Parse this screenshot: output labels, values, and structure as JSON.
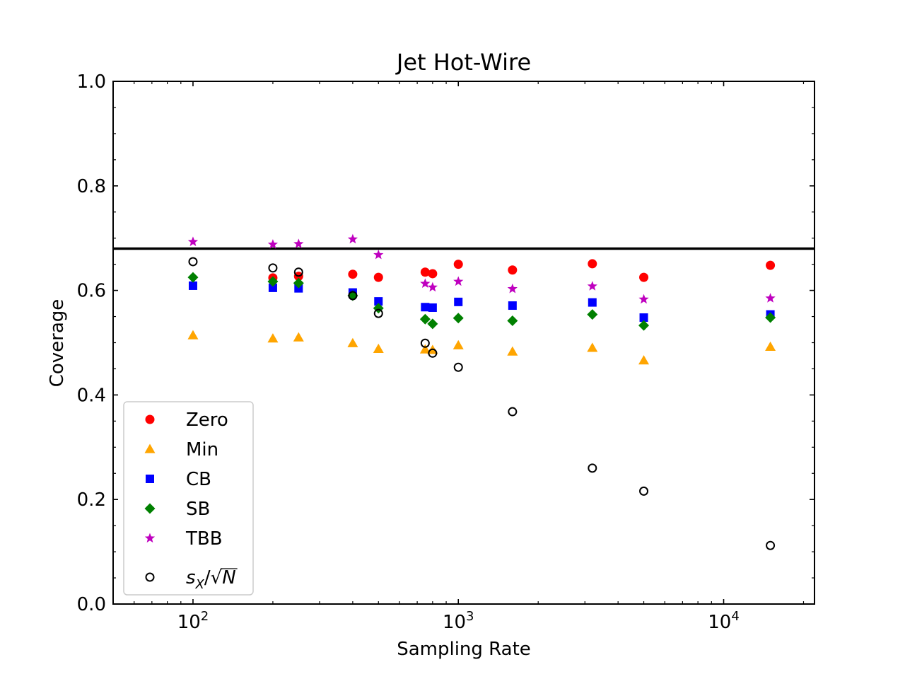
{
  "chart_data": {
    "type": "scatter",
    "title": "Jet Hot-Wire",
    "xlabel": "Sampling Rate",
    "ylabel": "Coverage",
    "xscale": "log",
    "xlim": [
      50,
      22000
    ],
    "ylim": [
      0.0,
      1.0
    ],
    "x_ticks": [
      {
        "value": 100,
        "base": "10",
        "exp": "2"
      },
      {
        "value": 1000,
        "base": "10",
        "exp": "3"
      },
      {
        "value": 10000,
        "base": "10",
        "exp": "4"
      }
    ],
    "y_ticks": [
      "0.0",
      "0.2",
      "0.4",
      "0.6",
      "0.8",
      "1.0"
    ],
    "reference_line": {
      "y": 0.68,
      "color": "#000000"
    },
    "grid": false,
    "legend_position": "lower-left",
    "series": [
      {
        "name": "Zero",
        "marker": "circle",
        "color": "#ff0000",
        "points": [
          [
            200,
            0.624
          ],
          [
            250,
            0.627
          ],
          [
            400,
            0.631
          ],
          [
            500,
            0.625
          ],
          [
            750,
            0.635
          ],
          [
            800,
            0.632
          ],
          [
            1000,
            0.65
          ],
          [
            1600,
            0.639
          ],
          [
            3200,
            0.651
          ],
          [
            5000,
            0.625
          ],
          [
            15000,
            0.648
          ]
        ]
      },
      {
        "name": "Min",
        "marker": "triangle",
        "color": "#ffa500",
        "points": [
          [
            100,
            0.514
          ],
          [
            200,
            0.508
          ],
          [
            250,
            0.51
          ],
          [
            400,
            0.499
          ],
          [
            500,
            0.488
          ],
          [
            750,
            0.487
          ],
          [
            800,
            0.486
          ],
          [
            1000,
            0.495
          ],
          [
            1600,
            0.483
          ],
          [
            3200,
            0.49
          ],
          [
            5000,
            0.466
          ],
          [
            15000,
            0.492
          ]
        ]
      },
      {
        "name": "CB",
        "marker": "square",
        "color": "#0000ff",
        "points": [
          [
            100,
            0.609
          ],
          [
            200,
            0.605
          ],
          [
            250,
            0.604
          ],
          [
            400,
            0.596
          ],
          [
            500,
            0.579
          ],
          [
            750,
            0.568
          ],
          [
            800,
            0.567
          ],
          [
            1000,
            0.578
          ],
          [
            1600,
            0.571
          ],
          [
            3200,
            0.577
          ],
          [
            5000,
            0.548
          ],
          [
            15000,
            0.554
          ]
        ]
      },
      {
        "name": "SB",
        "marker": "diamond",
        "color": "#008000",
        "points": [
          [
            100,
            0.625
          ],
          [
            200,
            0.617
          ],
          [
            250,
            0.614
          ],
          [
            400,
            0.59
          ],
          [
            500,
            0.566
          ],
          [
            750,
            0.545
          ],
          [
            800,
            0.536
          ],
          [
            1000,
            0.547
          ],
          [
            1600,
            0.542
          ],
          [
            3200,
            0.554
          ],
          [
            5000,
            0.533
          ],
          [
            15000,
            0.548
          ]
        ]
      },
      {
        "name": "TBB",
        "marker": "star",
        "color": "#bf00bf",
        "points": [
          [
            100,
            0.693
          ],
          [
            200,
            0.688
          ],
          [
            250,
            0.689
          ],
          [
            400,
            0.698
          ],
          [
            500,
            0.668
          ],
          [
            750,
            0.613
          ],
          [
            800,
            0.606
          ],
          [
            1000,
            0.617
          ],
          [
            1600,
            0.603
          ],
          [
            3200,
            0.608
          ],
          [
            5000,
            0.583
          ],
          [
            15000,
            0.585
          ]
        ]
      },
      {
        "name": "s_X/√N",
        "marker": "open-circle",
        "color": "#000000",
        "points": [
          [
            100,
            0.655
          ],
          [
            200,
            0.643
          ],
          [
            250,
            0.635
          ],
          [
            400,
            0.59
          ],
          [
            500,
            0.556
          ],
          [
            750,
            0.499
          ],
          [
            800,
            0.48
          ],
          [
            1000,
            0.453
          ],
          [
            1600,
            0.368
          ],
          [
            3200,
            0.26
          ],
          [
            5000,
            0.216
          ],
          [
            15000,
            0.112
          ]
        ]
      }
    ]
  }
}
